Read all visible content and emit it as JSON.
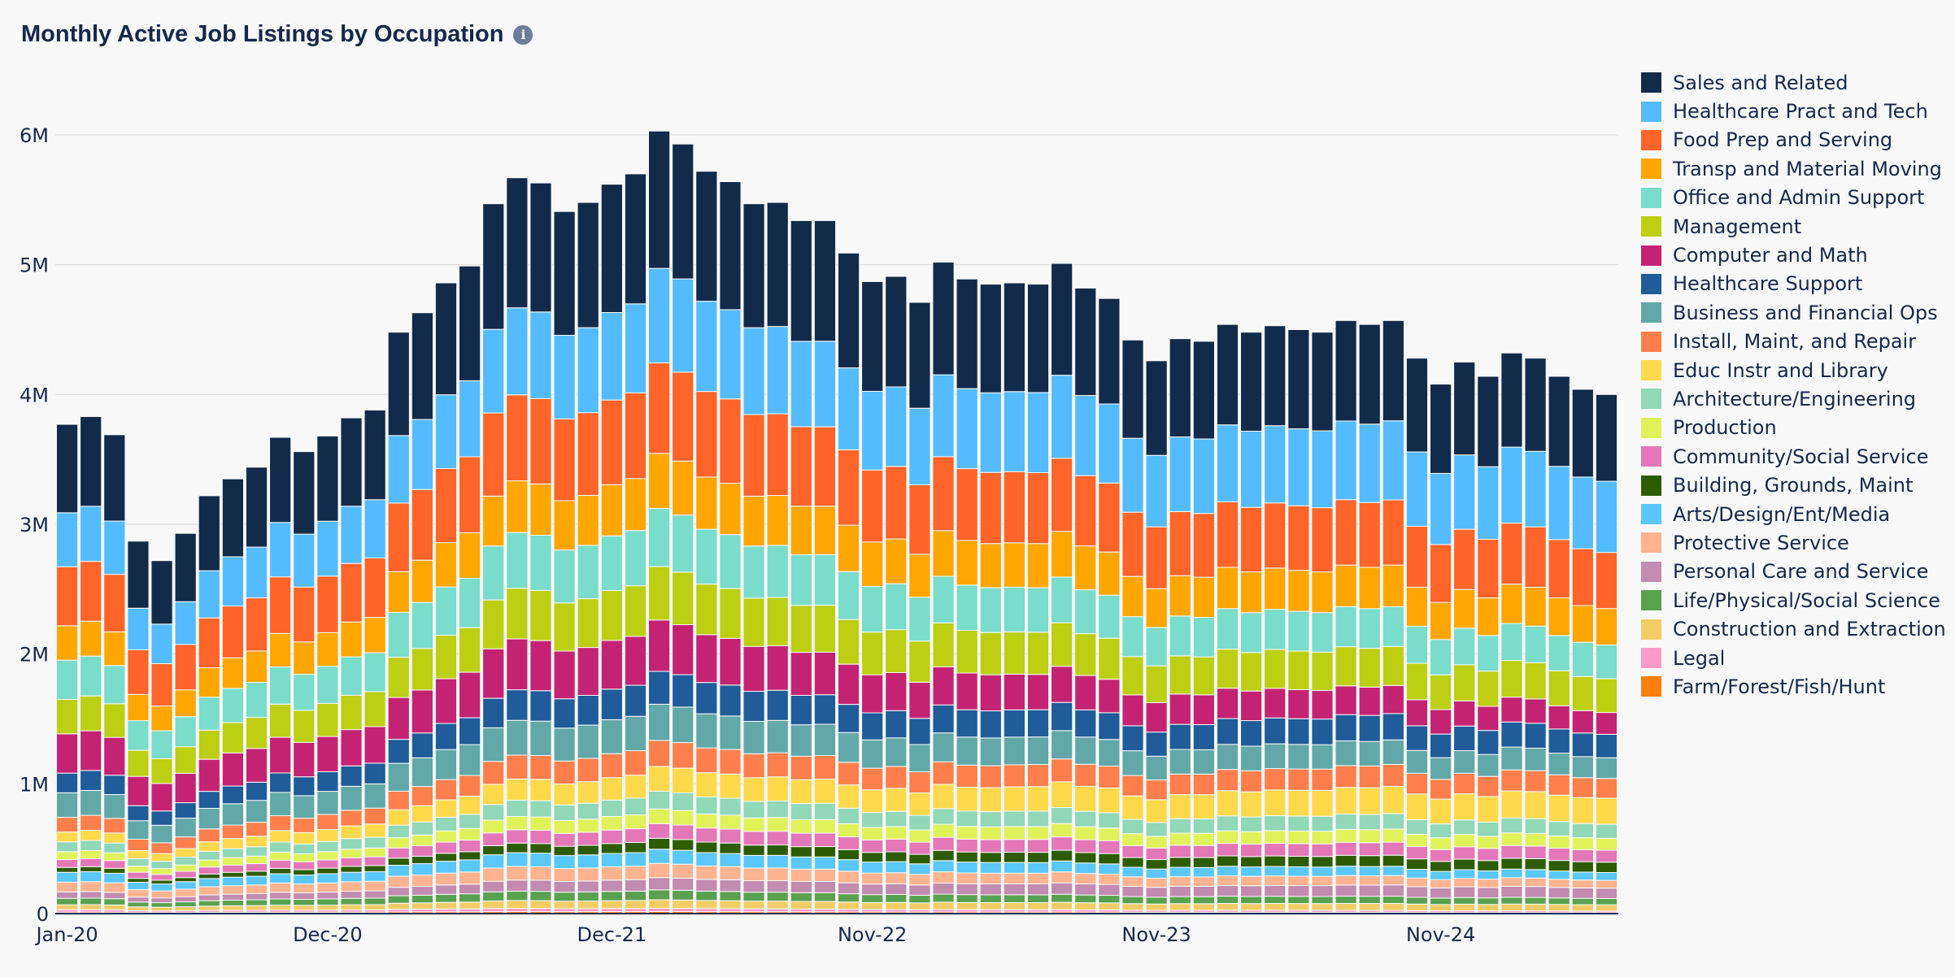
{
  "header": {
    "title": "Monthly Active Job Listings by Occupation",
    "info_icon": "i"
  },
  "chart_data": {
    "type": "bar",
    "stacked": true,
    "title": "Monthly Active Job Listings by Occupation",
    "xlabel": "",
    "ylabel": "",
    "ylim": [
      0,
      6300000
    ],
    "yticks": [
      0,
      1000000,
      2000000,
      3000000,
      4000000,
      5000000,
      6000000
    ],
    "ytick_labels": [
      "0",
      "1M",
      "2M",
      "3M",
      "4M",
      "5M",
      "6M"
    ],
    "xtick_labels": [
      {
        "index": 0,
        "label": "Jan-20"
      },
      {
        "index": 11,
        "label": "Dec-20"
      },
      {
        "index": 23,
        "label": "Dec-21"
      },
      {
        "index": 34,
        "label": "Nov-22"
      },
      {
        "index": 46,
        "label": "Nov-23"
      },
      {
        "index": 58,
        "label": "Nov-24"
      }
    ],
    "grid": true,
    "legend_position": "right",
    "months": [
      "Jan-20",
      "Feb-20",
      "Mar-20",
      "Apr-20",
      "May-20",
      "Jun-20",
      "Jul-20",
      "Aug-20",
      "Sep-20",
      "Oct-20",
      "Nov-20",
      "Dec-20",
      "Jan-21",
      "Feb-21",
      "Mar-21",
      "Apr-21",
      "May-21",
      "Jun-21",
      "Jul-21",
      "Aug-21",
      "Sep-21",
      "Oct-21",
      "Nov-21",
      "Dec-21",
      "Jan-22",
      "Feb-22",
      "Mar-22",
      "Apr-22",
      "May-22",
      "Jun-22",
      "Jul-22",
      "Aug-22",
      "Sep-22",
      "Oct-22",
      "Nov-22",
      "Dec-22",
      "Jan-23",
      "Feb-23",
      "Mar-23",
      "Apr-23",
      "May-23",
      "Jun-23",
      "Jul-23",
      "Aug-23",
      "Sep-23",
      "Oct-23",
      "Nov-23",
      "Dec-23",
      "Jan-24",
      "Feb-24",
      "Mar-24",
      "Apr-24",
      "May-24",
      "Jun-24",
      "Jul-24",
      "Aug-24",
      "Sep-24",
      "Oct-24",
      "Nov-24",
      "Dec-24",
      "Jan-25",
      "Feb-25",
      "Mar-25",
      "Apr-25",
      "May-25",
      "Jun-25"
    ],
    "totals_millions": [
      3.77,
      3.83,
      3.69,
      2.87,
      2.72,
      2.93,
      3.22,
      3.35,
      3.44,
      3.67,
      3.56,
      3.68,
      3.82,
      3.88,
      4.48,
      4.63,
      4.86,
      4.99,
      5.47,
      5.67,
      5.63,
      5.41,
      5.48,
      5.62,
      5.7,
      6.03,
      5.93,
      5.72,
      5.64,
      5.47,
      5.48,
      5.34,
      5.34,
      5.09,
      4.87,
      4.91,
      4.71,
      5.02,
      4.89,
      4.85,
      4.86,
      4.85,
      5.01,
      4.82,
      4.74,
      4.42,
      4.26,
      4.43,
      4.41,
      4.54,
      4.48,
      4.53,
      4.5,
      4.48,
      4.57,
      4.54,
      4.57,
      4.28,
      4.08,
      4.25,
      4.14,
      4.32,
      4.28,
      4.14,
      4.04,
      4.0
    ],
    "series": [
      {
        "name": "Farm/Forest/Fish/Hunt",
        "color": "#ff7f0e",
        "share_start_pct": 0.3,
        "share_end_pct": 0.2
      },
      {
        "name": "Legal",
        "color": "#ff9ac8",
        "share_start_pct": 0.5,
        "share_end_pct": 0.3
      },
      {
        "name": "Construction and Extraction",
        "color": "#f2cd66",
        "share_start_pct": 1.0,
        "share_end_pct": 1.2
      },
      {
        "name": "Life/Physical/Social Science",
        "color": "#59a14f",
        "share_start_pct": 1.3,
        "share_end_pct": 1.2
      },
      {
        "name": "Personal Care and Service",
        "color": "#c28bb0",
        "share_start_pct": 1.3,
        "share_end_pct": 2.0
      },
      {
        "name": "Protective Service",
        "color": "#ffb38f",
        "share_start_pct": 2.0,
        "share_end_pct": 1.5
      },
      {
        "name": "Arts/Design/Ent/Media",
        "color": "#5ac8fa",
        "share_start_pct": 2.0,
        "share_end_pct": 1.5
      },
      {
        "name": "Building, Grounds, Maint",
        "color": "#2d5c00",
        "share_start_pct": 1.0,
        "share_end_pct": 2.0
      },
      {
        "name": "Community/Social Service",
        "color": "#e377b8",
        "share_start_pct": 1.6,
        "share_end_pct": 2.3
      },
      {
        "name": "Production",
        "color": "#e0f25a",
        "share_start_pct": 1.6,
        "share_end_pct": 2.3
      },
      {
        "name": "Architecture/Engineering",
        "color": "#90d8b8",
        "share_start_pct": 2.0,
        "share_end_pct": 2.7
      },
      {
        "name": "Educ Instr and Library",
        "color": "#ffd94c",
        "share_start_pct": 2.0,
        "share_end_pct": 5.0
      },
      {
        "name": "Install, Maint, and Repair",
        "color": "#ff7f4c",
        "share_start_pct": 3.0,
        "share_end_pct": 3.8
      },
      {
        "name": "Business and Financial Ops",
        "color": "#62a8a8",
        "share_start_pct": 5.0,
        "share_end_pct": 4.0
      },
      {
        "name": "Healthcare Support",
        "color": "#1f5c99",
        "share_start_pct": 4.0,
        "share_end_pct": 4.5
      },
      {
        "name": "Computer and Math",
        "color": "#c42374",
        "share_start_pct": 8.0,
        "share_end_pct": 4.2
      },
      {
        "name": "Management",
        "color": "#bccf13",
        "share_start_pct": 7.0,
        "share_end_pct": 6.5
      },
      {
        "name": "Office and Admin Support",
        "color": "#7adcca",
        "share_start_pct": 8.0,
        "share_end_pct": 6.5
      },
      {
        "name": "Transp and Material Moving",
        "color": "#ffa600",
        "share_start_pct": 7.0,
        "share_end_pct": 7.0
      },
      {
        "name": "Food Prep and Serving",
        "color": "#ff6429",
        "share_start_pct": 12.0,
        "share_end_pct": 10.8
      },
      {
        "name": "Healthcare Pract and Tech",
        "color": "#55bbff",
        "share_start_pct": 11.0,
        "share_end_pct": 13.7
      },
      {
        "name": "Sales and Related",
        "color": "#122b4b",
        "share_start_pct": 18.0,
        "share_end_pct": 16.7
      }
    ],
    "legend_order": [
      "Sales and Related",
      "Healthcare Pract and Tech",
      "Food Prep and Serving",
      "Transp and Material Moving",
      "Office and Admin Support",
      "Management",
      "Computer and Math",
      "Healthcare Support",
      "Business and Financial Ops",
      "Install, Maint, and Repair",
      "Educ Instr and Library",
      "Architecture/Engineering",
      "Production",
      "Community/Social Service",
      "Building, Grounds, Maint",
      "Arts/Design/Ent/Media",
      "Protective Service",
      "Personal Care and Service",
      "Life/Physical/Social Science",
      "Construction and Extraction",
      "Legal",
      "Farm/Forest/Fish/Hunt"
    ]
  }
}
